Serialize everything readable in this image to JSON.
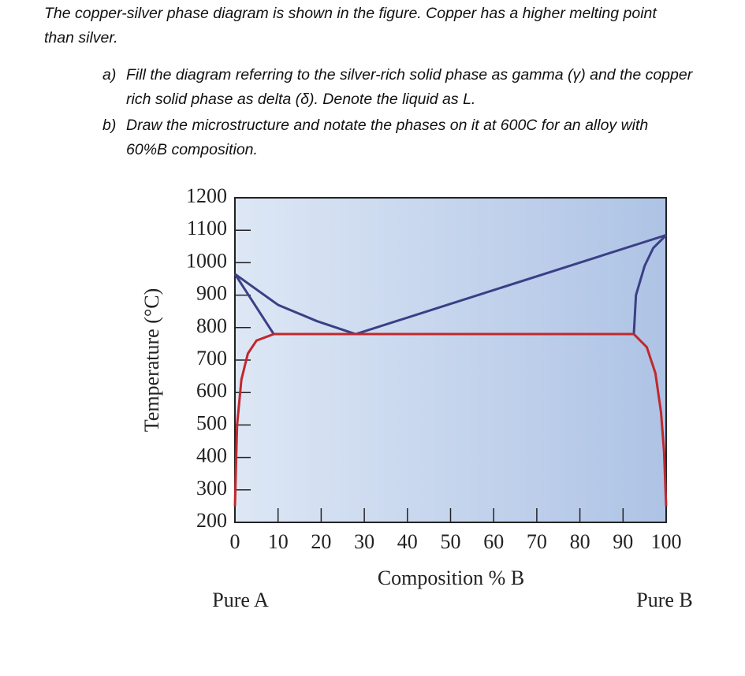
{
  "question": {
    "intro": "The copper-silver phase diagram is shown in the figure.  Copper has a higher melting point than silver.",
    "items": [
      {
        "marker": "a)",
        "text": "Fill the diagram referring to the silver-rich solid phase as gamma (γ) and the copper rich solid phase as delta (δ). Denote the liquid as L."
      },
      {
        "marker": "b)",
        "text": "Draw the microstructure and notate the phases on it at 600C for an alloy with 60%B composition."
      }
    ]
  },
  "chart_data": {
    "type": "line",
    "xlabel": "Composition % B",
    "ylabel": "Temperature (°C)",
    "annotations": [
      "Pure A",
      "Pure B"
    ],
    "xlim": [
      0,
      100
    ],
    "ylim": [
      200,
      1200
    ],
    "xticks": [
      0,
      10,
      20,
      30,
      40,
      50,
      60,
      70,
      80,
      90,
      100
    ],
    "yticks": [
      200,
      300,
      400,
      500,
      600,
      700,
      800,
      900,
      1000,
      1100,
      1200
    ],
    "series": [
      {
        "color": "#3b3f86",
        "x": [
          0,
          10,
          19,
          28
        ],
        "values": [
          965,
          870,
          820,
          780
        ]
      },
      {
        "color": "#3b3f86",
        "x": [
          28,
          100
        ],
        "values": [
          780,
          1085
        ]
      },
      {
        "color": "#3b3f86",
        "x": [
          0,
          9
        ],
        "values": [
          965,
          780
        ]
      },
      {
        "color": "#3b3f86",
        "x": [
          92.5,
          93,
          95,
          97,
          100
        ],
        "values": [
          780,
          900,
          990,
          1045,
          1085
        ]
      },
      {
        "color": "#c0282d",
        "x": [
          9,
          92.5
        ],
        "values": [
          780,
          780
        ]
      },
      {
        "color": "#c0282d",
        "x": [
          0,
          0.5,
          1.5,
          3,
          5,
          9
        ],
        "values": [
          250,
          500,
          640,
          720,
          760,
          780
        ]
      },
      {
        "color": "#c0282d",
        "x": [
          92.5,
          95.5,
          97.5,
          98.8,
          99.5,
          100
        ],
        "values": [
          780,
          740,
          660,
          540,
          420,
          250
        ]
      }
    ]
  }
}
